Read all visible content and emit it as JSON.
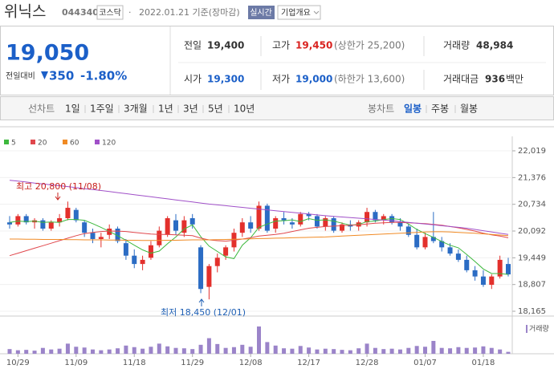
{
  "header": {
    "name": "위닉스",
    "code": "044340",
    "market": "코스닥",
    "date": "2022.01.21 기준(장마감)",
    "realtime": "실시간",
    "company_info": "기업개요"
  },
  "quote": {
    "price": "19,050",
    "change_label": "전일대비",
    "change": "350",
    "change_rate": "-1.80%",
    "stats": [
      {
        "label": "전일",
        "value": "19,400"
      },
      {
        "label": "고가",
        "value": "19,450",
        "note": "(상한가 25,200)"
      },
      {
        "label": "거래량",
        "value": "48,984"
      },
      {
        "label": "시가",
        "value": "19,300"
      },
      {
        "label": "저가",
        "value": "19,000",
        "note": "(하한가 13,600)"
      },
      {
        "label": "거래대금",
        "value": "936",
        "unit": "백만"
      }
    ]
  },
  "tabs": {
    "line_chart": "선차트",
    "periods": [
      "1일",
      "1주일",
      "3개월",
      "1년",
      "3년",
      "5년",
      "10년"
    ],
    "candle_chart": "봉차트",
    "candle_periods": [
      "일봉",
      "주봉",
      "월봉"
    ]
  },
  "chart_data": {
    "type": "candlestick",
    "up_color": "#e3302c",
    "down_color": "#2b6cc4",
    "grid": true,
    "categories": [
      null,
      "10/29",
      null,
      null,
      null,
      null,
      null,
      null,
      "11/09",
      null,
      null,
      null,
      null,
      null,
      null,
      "11/18",
      null,
      null,
      null,
      null,
      null,
      null,
      "11/29",
      null,
      null,
      null,
      null,
      null,
      null,
      "12/08",
      null,
      null,
      null,
      null,
      null,
      null,
      "12/17",
      null,
      null,
      null,
      null,
      null,
      null,
      "12/28",
      null,
      null,
      null,
      null,
      null,
      null,
      "01/07",
      null,
      null,
      null,
      null,
      null,
      null,
      "01/18",
      null,
      null,
      null
    ],
    "open": [
      20300,
      20250,
      20450,
      20300,
      20350,
      20150,
      20300,
      20400,
      20600,
      20300,
      20050,
      19900,
      20000,
      20150,
      19800,
      19500,
      19300,
      19450,
      19750,
      20000,
      20350,
      20050,
      20400,
      19700,
      18750,
      19250,
      19500,
      19700,
      20050,
      20300,
      20150,
      20700,
      20150,
      20400,
      20300,
      20250,
      20500,
      20450,
      20200,
      20400,
      20100,
      20250,
      20200,
      20300,
      20550,
      20350,
      20450,
      20300,
      20200,
      20000,
      19700,
      19950,
      19850,
      19700,
      19550,
      19400,
      19150,
      19000,
      18800,
      19000,
      19300
    ],
    "high": [
      20450,
      20500,
      20500,
      20400,
      20400,
      20350,
      20500,
      20800,
      20650,
      20350,
      20150,
      20050,
      20250,
      20200,
      19900,
      19650,
      19500,
      19850,
      20200,
      20450,
      20500,
      20450,
      20500,
      19750,
      19300,
      19550,
      19750,
      20150,
      20400,
      20450,
      20800,
      20750,
      20450,
      20550,
      20400,
      20550,
      20550,
      20500,
      20450,
      20450,
      20300,
      20350,
      20350,
      20650,
      20600,
      20500,
      20500,
      20400,
      20250,
      20150,
      20050,
      20550,
      19950,
      19800,
      19650,
      19500,
      19250,
      19150,
      19050,
      19500,
      19450
    ],
    "low": [
      20150,
      20200,
      20250,
      20150,
      20100,
      20100,
      20200,
      20350,
      20300,
      19950,
      19800,
      19700,
      19900,
      19800,
      19400,
      19200,
      19150,
      19400,
      19700,
      19950,
      20000,
      19950,
      20150,
      18600,
      18450,
      19100,
      19400,
      19600,
      19950,
      20050,
      20100,
      20050,
      20050,
      20250,
      20150,
      20200,
      20350,
      20150,
      20100,
      20050,
      20050,
      20100,
      20100,
      20200,
      20300,
      20250,
      20250,
      20100,
      19950,
      19650,
      19650,
      19800,
      19600,
      19500,
      19350,
      19100,
      18900,
      18750,
      18700,
      18950,
      19000
    ],
    "close": [
      20250,
      20450,
      20300,
      20350,
      20150,
      20300,
      20400,
      20650,
      20350,
      20050,
      19900,
      19950,
      20150,
      19850,
      19500,
      19300,
      19400,
      19750,
      20100,
      20400,
      20100,
      20350,
      20250,
      18700,
      19250,
      19450,
      19700,
      20050,
      20300,
      20150,
      20700,
      20100,
      20400,
      20350,
      20250,
      20500,
      20450,
      20200,
      20400,
      20100,
      20250,
      20200,
      20300,
      20550,
      20350,
      20450,
      20300,
      20200,
      20000,
      19700,
      19950,
      19850,
      19700,
      19550,
      19400,
      19150,
      19000,
      18800,
      19000,
      19400,
      19050
    ],
    "moving_averages": [
      {
        "name": "5",
        "color": "#3db83d",
        "values": [
          20300,
          20330,
          20320,
          20330,
          20300,
          20310,
          20300,
          20370,
          20370,
          20350,
          20270,
          20180,
          20080,
          19980,
          19870,
          19750,
          19640,
          19560,
          19610,
          19790,
          19950,
          20140,
          20240,
          19960,
          19730,
          19600,
          19470,
          19430,
          19750,
          19930,
          20180,
          20260,
          20330,
          20340,
          20360,
          20320,
          20390,
          20350,
          20360,
          20330,
          20280,
          20230,
          20250,
          20320,
          20330,
          20370,
          20390,
          20370,
          20260,
          20130,
          20030,
          19940,
          19840,
          19750,
          19690,
          19530,
          19360,
          19180,
          19070,
          19070,
          19050
        ]
      },
      {
        "name": "20",
        "color": "#e0474c",
        "values": [
          19500,
          19560,
          19620,
          19680,
          19740,
          19800,
          19860,
          19920,
          19980,
          20030,
          20060,
          20080,
          20090,
          20090,
          20080,
          20060,
          20040,
          20020,
          20010,
          20010,
          20000,
          19990,
          19980,
          19920,
          19880,
          19860,
          19850,
          19870,
          19900,
          19930,
          19970,
          19990,
          20010,
          20040,
          20080,
          20120,
          20160,
          20180,
          20200,
          20210,
          20220,
          20230,
          20240,
          20260,
          20280,
          20290,
          20300,
          20300,
          20290,
          20280,
          20270,
          20250,
          20230,
          20200,
          20170,
          20130,
          20090,
          20040,
          20000,
          19970,
          19930
        ]
      },
      {
        "name": "60",
        "color": "#f08a24",
        "values": [
          19900,
          19900,
          19895,
          19895,
          19890,
          19890,
          19890,
          19885,
          19885,
          19880,
          19880,
          19880,
          19875,
          19875,
          19870,
          19870,
          19865,
          19865,
          19865,
          19870,
          19870,
          19875,
          19880,
          19880,
          19880,
          19885,
          19890,
          19895,
          19900,
          19905,
          19910,
          19915,
          19920,
          19925,
          19930,
          19935,
          19940,
          19945,
          19950,
          19960,
          19970,
          19980,
          19990,
          20000,
          20010,
          20020,
          20030,
          20040,
          20050,
          20060,
          20070,
          20075,
          20075,
          20070,
          20060,
          20050,
          20040,
          20025,
          20010,
          19995,
          19980
        ]
      },
      {
        "name": "120",
        "color": "#a050c8",
        "values": [
          21310,
          21290,
          21270,
          21245,
          21225,
          21200,
          21180,
          21160,
          21135,
          21110,
          21090,
          21065,
          21040,
          21015,
          20990,
          20965,
          20940,
          20915,
          20890,
          20865,
          20840,
          20815,
          20790,
          20765,
          20740,
          20720,
          20700,
          20680,
          20660,
          20640,
          20620,
          20600,
          20580,
          20560,
          20540,
          20520,
          20500,
          20480,
          20460,
          20445,
          20430,
          20415,
          20400,
          20385,
          20370,
          20355,
          20340,
          20320,
          20300,
          20280,
          20260,
          20240,
          20220,
          20200,
          20180,
          20160,
          20130,
          20100,
          20070,
          20040,
          20010
        ]
      }
    ],
    "volume": {
      "name": "거래량",
      "color": "#9b84c9",
      "values": [
        120000,
        90000,
        100000,
        80000,
        150000,
        110000,
        130000,
        260000,
        180000,
        160000,
        110000,
        90000,
        110000,
        140000,
        210000,
        170000,
        130000,
        180000,
        260000,
        190000,
        150000,
        140000,
        120000,
        230000,
        400000,
        250000,
        150000,
        170000,
        230000,
        180000,
        700000,
        300000,
        210000,
        140000,
        130000,
        200000,
        160000,
        110000,
        130000,
        120000,
        100000,
        90000,
        140000,
        260000,
        150000,
        120000,
        130000,
        110000,
        150000,
        200000,
        180000,
        330000,
        150000,
        140000,
        170000,
        150000,
        160000,
        190000,
        150000,
        110000,
        49000
      ]
    },
    "ylim": [
      18165,
      22019
    ],
    "yticks": [
      {
        "value": 22019,
        "label": "22,019"
      },
      {
        "value": 21376,
        "label": "21,376"
      },
      {
        "value": 20734,
        "label": "20,734"
      },
      {
        "value": 20092,
        "label": "20,092"
      },
      {
        "value": 19449,
        "label": "19,449"
      },
      {
        "value": 18807,
        "label": "18,807"
      },
      {
        "value": 18165,
        "label": "18,165"
      }
    ],
    "annotations": [
      {
        "text": "최고 20,800 (11/08)",
        "color": "#c8211d"
      },
      {
        "text": "최저 18,450 (12/01)",
        "color": "#1e5fb4"
      }
    ]
  }
}
